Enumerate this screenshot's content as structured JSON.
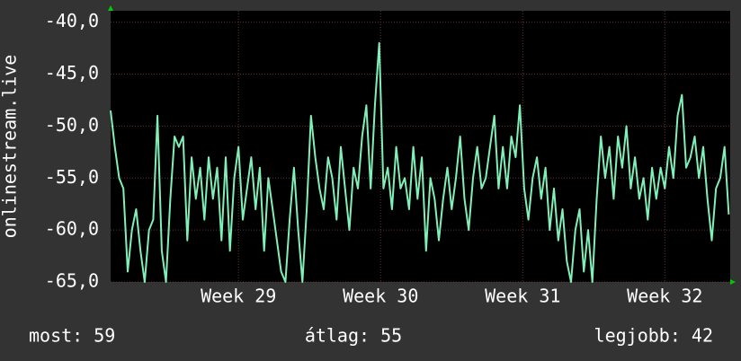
{
  "chart_data": {
    "type": "line",
    "ylabel": "onlinestream.live",
    "x": [
      28.1,
      28.13,
      28.16,
      28.19,
      28.22,
      28.25,
      28.28,
      28.31,
      28.34,
      28.37,
      28.4,
      28.43,
      28.46,
      28.49,
      28.52,
      28.55,
      28.58,
      28.61,
      28.64,
      28.67,
      28.7,
      28.73,
      28.76,
      28.79,
      28.82,
      28.85,
      28.88,
      28.91,
      28.94,
      28.97,
      29,
      29.03,
      29.06,
      29.09,
      29.12,
      29.15,
      29.18,
      29.21,
      29.24,
      29.27,
      29.3,
      29.33,
      29.36,
      29.39,
      29.42,
      29.45,
      29.48,
      29.51,
      29.54,
      29.57,
      29.6,
      29.63,
      29.66,
      29.69,
      29.72,
      29.75,
      29.78,
      29.81,
      29.84,
      29.87,
      29.9,
      29.93,
      29.96,
      29.99,
      30.02,
      30.05,
      30.08,
      30.11,
      30.14,
      30.17,
      30.2,
      30.23,
      30.26,
      30.29,
      30.32,
      30.35,
      30.38,
      30.41,
      30.44,
      30.47,
      30.5,
      30.53,
      30.56,
      30.59,
      30.62,
      30.65,
      30.68,
      30.71,
      30.74,
      30.77,
      30.8,
      30.83,
      30.86,
      30.89,
      30.92,
      30.95,
      30.98,
      31.01,
      31.04,
      31.07,
      31.1,
      31.13,
      31.16,
      31.19,
      31.22,
      31.25,
      31.28,
      31.31,
      31.34,
      31.37,
      31.4,
      31.43,
      31.46,
      31.49,
      31.52,
      31.55,
      31.58,
      31.61,
      31.64,
      31.67,
      31.7,
      31.73,
      31.76,
      31.79,
      31.82,
      31.85,
      31.88,
      31.91,
      31.94,
      31.97,
      32,
      32.03,
      32.06,
      32.09,
      32.12,
      32.15,
      32.18,
      32.21,
      32.24,
      32.27,
      32.3,
      32.33,
      32.36,
      32.39,
      32.42,
      32.45
    ],
    "series": [
      {
        "color": "#80f0b8",
        "values": [
          -48.5,
          -52,
          -55,
          -56,
          -64,
          -60,
          -58,
          -62,
          -65,
          -60,
          -59,
          -49,
          -62,
          -65,
          -57,
          -51,
          -52,
          -51,
          -61,
          -53,
          -57,
          -54,
          -59,
          -53,
          -57,
          -54,
          -61,
          -53,
          -62,
          -55,
          -52,
          -59,
          -56,
          -53,
          -58,
          -54,
          -62,
          -55,
          -58,
          -61,
          -64,
          -65,
          -59,
          -54,
          -60,
          -65,
          -58,
          -49,
          -53,
          -56,
          -58,
          -53,
          -55,
          -59,
          -52,
          -56,
          -60,
          -54,
          -56,
          -51,
          -48,
          -56,
          -48,
          -42,
          -56,
          -54,
          -58,
          -52,
          -56,
          -55,
          -58,
          -52,
          -57,
          -53,
          -62,
          -55,
          -57,
          -61,
          -57,
          -54,
          -58,
          -55,
          -51,
          -57,
          -60,
          -55,
          -52,
          -56,
          -55,
          -52,
          -49,
          -56,
          -52,
          -56,
          -51,
          -53,
          -48,
          -56,
          -59,
          -55,
          -53,
          -57,
          -54,
          -60,
          -56,
          -61,
          -58,
          -63,
          -65,
          -60,
          -58,
          -64,
          -60,
          -65,
          -57,
          -51,
          -55,
          -52,
          -57,
          -51,
          -54,
          -50,
          -56,
          -53,
          -57,
          -55,
          -59,
          -54,
          -57,
          -54,
          -56,
          -52,
          -55,
          -49,
          -47,
          -54,
          -53,
          -51,
          -55,
          -52,
          -57,
          -61,
          -56,
          -55,
          -52,
          -58.5
        ]
      }
    ],
    "xlim": [
      28.1,
      32.46
    ],
    "xticks": [
      {
        "value": 29,
        "label": "Week 29"
      },
      {
        "value": 30,
        "label": "Week 30"
      },
      {
        "value": 31,
        "label": "Week 31"
      },
      {
        "value": 32,
        "label": "Week 32"
      }
    ],
    "ylim": [
      -65,
      -38.9
    ],
    "yticks": [
      {
        "value": -65,
        "label": "-65,0"
      },
      {
        "value": -60,
        "label": "-60,0"
      },
      {
        "value": -55,
        "label": "-55,0"
      },
      {
        "value": -50,
        "label": "-50,0"
      },
      {
        "value": -45,
        "label": "-45,0"
      },
      {
        "value": -40,
        "label": "-40,0"
      }
    ],
    "grid": true,
    "footer": {
      "current": "most: 59",
      "average": "átlag: 55",
      "best": "legjobb: 42"
    }
  }
}
